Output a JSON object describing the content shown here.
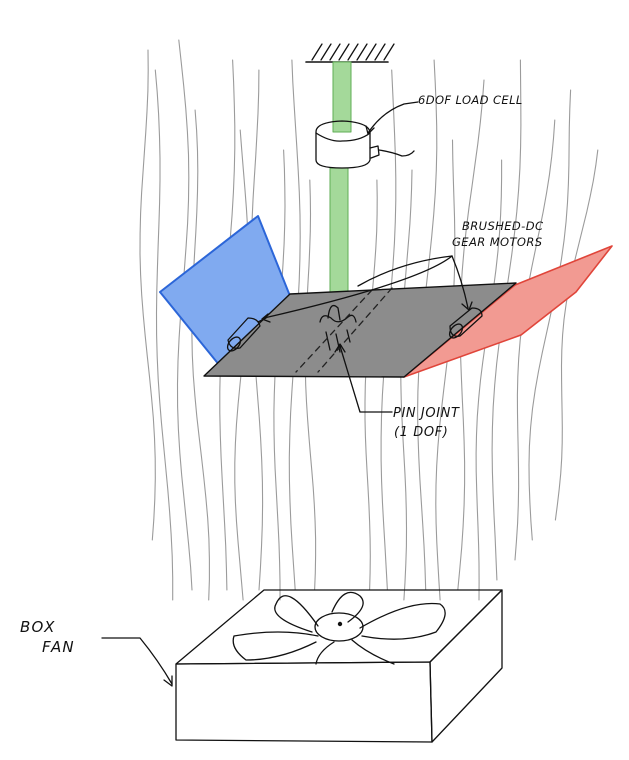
{
  "labels": {
    "load_cell": "6DOF LOAD CELL",
    "motors_line1": "BRUSHED-DC",
    "motors_line2": "GEAR MOTORS",
    "pin_joint_line1": "PIN JOINT",
    "pin_joint_line2": "(1 DOF)",
    "box_fan_line1": "BOX",
    "box_fan_line2": "FAN"
  },
  "colors": {
    "rod": "#a4d99a",
    "rod_edge": "#5fae55",
    "center_plate": "#8c8c8c",
    "left_flap": "#80aaf0",
    "left_flap_edge": "#2c66d8",
    "right_flap": "#f29a92",
    "right_flap_edge": "#e0453a",
    "airflow": "#9b9b9b",
    "ink": "#111111"
  }
}
